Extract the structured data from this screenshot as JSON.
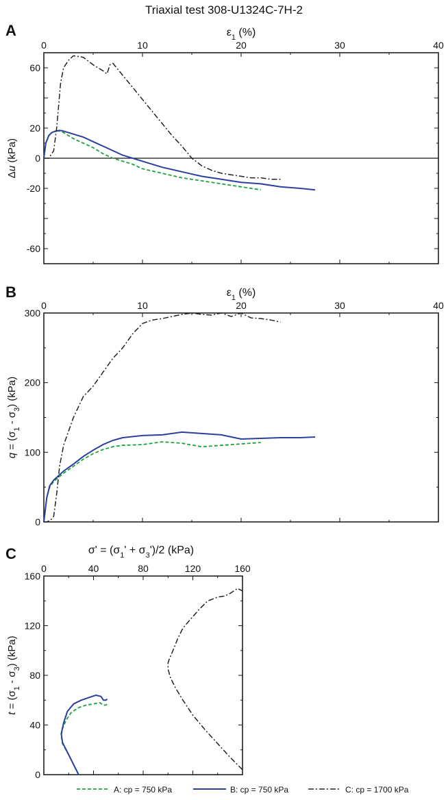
{
  "figure": {
    "title": "Triaxial test 308-U1324C-7H-2"
  },
  "colors": {
    "A": "#1aa33a",
    "B": "#2b3f9e",
    "C": "#222222",
    "axis": "#111111"
  },
  "legend": {
    "placement": "bottom",
    "items": [
      {
        "label": "A: cp = 750 kPa",
        "color": "#1aa33a",
        "style": "dashed"
      },
      {
        "label": "B: cp = 750 kPa",
        "color": "#2b3f9e",
        "style": "solid"
      },
      {
        "label": "C: cp = 1700 kPa",
        "color": "#222222",
        "style": "dashdot"
      }
    ]
  },
  "chart_data": [
    {
      "panel": "A",
      "type": "line",
      "xlabel": "ε1 (%)",
      "ylabel": "Δu (kPa)",
      "xlim": [
        0,
        40
      ],
      "ylim": [
        -70,
        70
      ],
      "xticks": [
        0,
        10,
        20,
        30,
        40
      ],
      "yticks": [
        60,
        20,
        0,
        -20,
        -60
      ],
      "zero_line": true,
      "series": [
        {
          "key": "A",
          "x": [
            0,
            0.2,
            0.5,
            0.8,
            1.2,
            1.6,
            2,
            3,
            4,
            5,
            6,
            7,
            8,
            9,
            10,
            12,
            14,
            16,
            18,
            20,
            22
          ],
          "y": [
            0,
            10,
            15,
            17,
            18,
            18,
            17,
            13,
            10,
            7,
            3,
            0,
            -2,
            -4,
            -7,
            -10,
            -13,
            -15,
            -17,
            -19,
            -21
          ]
        },
        {
          "key": "B",
          "x": [
            0,
            0.2,
            0.5,
            0.8,
            1.2,
            1.6,
            2,
            3,
            4,
            5,
            6,
            7,
            8,
            9,
            10,
            12,
            14,
            16,
            18,
            20,
            22,
            24,
            26,
            27.5
          ],
          "y": [
            0,
            10,
            15,
            17,
            18,
            18.5,
            18,
            16,
            14,
            11,
            8,
            5,
            2,
            0,
            -2,
            -6,
            -9,
            -12,
            -14,
            -16,
            -17,
            -19,
            -20,
            -21
          ]
        },
        {
          "key": "C",
          "x": [
            0,
            0.5,
            1,
            1.3,
            1.7,
            2,
            2.5,
            3,
            4,
            5,
            6,
            6.4,
            6.7,
            7,
            8,
            9,
            10,
            11,
            12,
            13,
            14,
            15,
            16,
            17,
            18,
            19,
            20,
            21,
            22,
            23,
            24
          ],
          "y": [
            0,
            0,
            5,
            20,
            50,
            60,
            65,
            68,
            67,
            62,
            58,
            56,
            62,
            63,
            55,
            47,
            39,
            31,
            23,
            15,
            8,
            0,
            -5,
            -8,
            -10,
            -11,
            -12,
            -13,
            -13,
            -14,
            -14
          ]
        }
      ]
    },
    {
      "panel": "B",
      "type": "line",
      "xlabel": "ε1 (%)",
      "ylabel": "q = (σ1 - σ3) (kPa)",
      "xlim": [
        0,
        40
      ],
      "ylim": [
        0,
        300
      ],
      "xticks": [
        0,
        10,
        20,
        30,
        40
      ],
      "yticks": [
        0,
        100,
        200,
        300
      ],
      "series": [
        {
          "key": "A",
          "x": [
            0,
            0.3,
            0.6,
            1,
            2,
            3,
            4,
            5,
            6,
            7,
            8,
            10,
            12,
            14,
            16,
            18,
            20,
            22
          ],
          "y": [
            0,
            35,
            50,
            58,
            70,
            80,
            90,
            98,
            104,
            108,
            110,
            111,
            115,
            113,
            108,
            110,
            112,
            114
          ]
        },
        {
          "key": "B",
          "x": [
            0,
            0.3,
            0.6,
            1,
            2,
            3,
            4,
            5,
            6,
            7,
            8,
            10,
            12,
            14,
            16,
            18,
            20,
            22,
            24,
            26,
            27.5
          ],
          "y": [
            0,
            35,
            52,
            60,
            73,
            83,
            94,
            103,
            111,
            117,
            121,
            124,
            125,
            129,
            127,
            125,
            119,
            120,
            121,
            121,
            122
          ]
        },
        {
          "key": "C",
          "x": [
            0,
            0.3,
            0.7,
            1,
            1.3,
            1.6,
            2,
            2.5,
            3,
            4,
            5,
            6,
            7,
            8,
            9,
            10,
            11,
            12,
            13,
            14,
            15,
            16,
            17,
            18,
            19,
            20,
            21,
            22,
            23,
            24
          ],
          "y": [
            0,
            0,
            3,
            8,
            40,
            80,
            110,
            130,
            150,
            180,
            195,
            215,
            235,
            250,
            270,
            285,
            290,
            292,
            295,
            298,
            300,
            298,
            297,
            300,
            295,
            300,
            293,
            292,
            290,
            287
          ]
        }
      ]
    },
    {
      "panel": "C",
      "type": "line",
      "xlabel": "σ' = (σ1' + σ3')/2 (kPa)",
      "ylabel": "t = (σ1 - σ3) (kPa)",
      "xlim": [
        0,
        160
      ],
      "ylim": [
        0,
        160
      ],
      "xticks": [
        0,
        40,
        80,
        120,
        160
      ],
      "yticks": [
        0,
        40,
        80,
        120,
        160
      ],
      "series": [
        {
          "key": "A",
          "x": [
            28,
            24,
            20,
            15,
            14,
            15,
            18,
            22,
            28,
            34,
            40,
            45,
            48,
            50,
            51
          ],
          "y": [
            0,
            8,
            16,
            25,
            31,
            37,
            44,
            50,
            54,
            56,
            57,
            58,
            56,
            56,
            57
          ]
        },
        {
          "key": "B",
          "x": [
            28,
            24,
            20,
            15,
            14,
            16,
            19,
            24,
            30,
            36,
            42,
            46,
            48,
            50,
            51
          ],
          "y": [
            0,
            8,
            16,
            26,
            33,
            42,
            51,
            57,
            60,
            62,
            64,
            63,
            60,
            60,
            61
          ]
        },
        {
          "key": "C",
          "x": [
            160,
            150,
            140,
            130,
            120,
            112,
            106,
            102,
            100,
            100,
            101,
            104,
            108,
            112,
            118,
            125,
            132,
            140,
            146,
            150,
            156,
            160
          ],
          "y": [
            4,
            14,
            25,
            36,
            48,
            60,
            70,
            78,
            85,
            90,
            93,
            100,
            110,
            118,
            125,
            133,
            140,
            143,
            144,
            146,
            150,
            148
          ]
        }
      ]
    }
  ]
}
